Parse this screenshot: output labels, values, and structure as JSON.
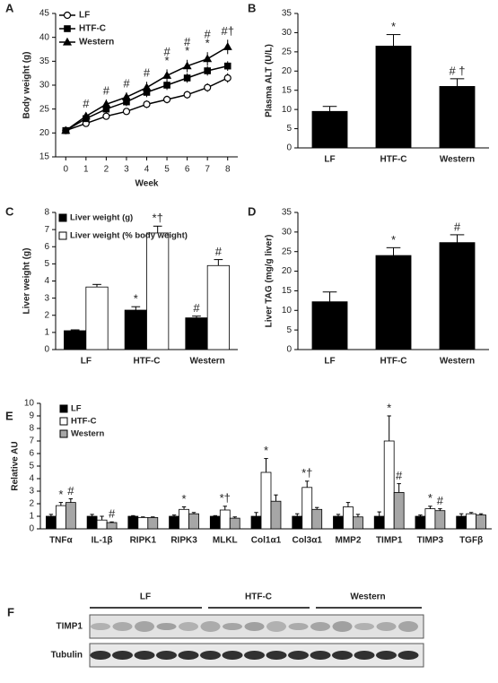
{
  "chart_data": [
    {
      "panel": "A",
      "type": "line",
      "xlabel": "Week",
      "ylabel": "Body weight (g)",
      "x": [
        0,
        1,
        2,
        3,
        4,
        5,
        6,
        7,
        8
      ],
      "xlim": [
        -0.5,
        8.5
      ],
      "xticks": [
        0,
        1,
        2,
        3,
        4,
        5,
        6,
        7,
        8
      ],
      "ylim": [
        15,
        45
      ],
      "yticks": [
        15,
        20,
        25,
        30,
        35,
        40,
        45
      ],
      "legend": "upper left",
      "series": [
        {
          "name": "LF",
          "color": "#000000",
          "marker": "circle-open",
          "values": [
            20.5,
            22,
            23.5,
            24.5,
            26,
            27,
            28,
            29.5,
            31.5
          ],
          "errors": [
            0.5,
            0.6,
            0.6,
            0.7,
            0.8,
            0.8,
            0.8,
            0.9,
            1
          ]
        },
        {
          "name": "HTF-C",
          "color": "#000000",
          "marker": "square",
          "values": [
            20.5,
            23,
            25,
            26.5,
            28.5,
            30,
            31.5,
            33,
            34
          ],
          "errors": [
            0.5,
            0.7,
            0.8,
            0.9,
            1,
            1,
            1,
            1,
            1
          ]
        },
        {
          "name": "Western",
          "color": "#000000",
          "marker": "triangle",
          "values": [
            20.5,
            23.5,
            26,
            27.5,
            29.5,
            32,
            34,
            35.5,
            38
          ],
          "errors": [
            0.5,
            0.8,
            1,
            1,
            1.2,
            1.3,
            1.3,
            1.4,
            1.5
          ]
        }
      ],
      "annotations": [
        {
          "x": 1,
          "text": "#"
        },
        {
          "x": 2,
          "text": "#"
        },
        {
          "x": 3,
          "text": "#"
        },
        {
          "x": 4,
          "text": "#"
        },
        {
          "x": 5,
          "text": "*"
        },
        {
          "x": 5,
          "text": "#"
        },
        {
          "x": 6,
          "text": "*"
        },
        {
          "x": 6,
          "text": "#"
        },
        {
          "x": 7,
          "text": "*"
        },
        {
          "x": 7,
          "text": "#"
        },
        {
          "x": 8,
          "text": "#†"
        }
      ]
    },
    {
      "panel": "B",
      "type": "bar",
      "ylabel": "Plasma ALT (U/L)",
      "categories": [
        "LF",
        "HTF-C",
        "Western"
      ],
      "values": [
        9.5,
        26.5,
        16
      ],
      "errors": [
        1.3,
        3,
        2
      ],
      "annotations": [
        null,
        "*",
        "# †"
      ],
      "color": "#000000",
      "ylim": [
        0,
        35
      ],
      "yticks": [
        0,
        5,
        10,
        15,
        20,
        25,
        30,
        35
      ]
    },
    {
      "panel": "C",
      "type": "bar",
      "ylabel": "Liver weight (g)",
      "categories": [
        "LF",
        "HTF-C",
        "Western"
      ],
      "ylim": [
        0,
        8
      ],
      "yticks": [
        0,
        1,
        2,
        3,
        4,
        5,
        6,
        7,
        8
      ],
      "legend": "upper left",
      "series": [
        {
          "name": "Liver weight (g)",
          "color": "#000000",
          "values": [
            1.1,
            2.3,
            1.85
          ],
          "errors": [
            0.05,
            0.2,
            0.1
          ],
          "annotations": [
            null,
            "*",
            "#"
          ]
        },
        {
          "name": "Liver weight (% body weight)",
          "color": "#ffffff",
          "values": [
            3.65,
            6.8,
            4.9
          ],
          "errors": [
            0.15,
            0.4,
            0.35
          ],
          "annotations": [
            null,
            "*†",
            "#"
          ]
        }
      ]
    },
    {
      "panel": "D",
      "type": "bar",
      "ylabel": "Liver TAG (mg/g liver)",
      "categories": [
        "LF",
        "HTF-C",
        "Western"
      ],
      "values": [
        12.2,
        24,
        27.3
      ],
      "errors": [
        2.5,
        2,
        2
      ],
      "annotations": [
        null,
        "*",
        "#"
      ],
      "color": "#000000",
      "ylim": [
        0,
        35
      ],
      "yticks": [
        0,
        5,
        10,
        15,
        20,
        25,
        30,
        35
      ]
    },
    {
      "panel": "E",
      "type": "bar",
      "ylabel": "Relative AU",
      "categories": [
        "TNFα",
        "IL-1β",
        "RIPK1",
        "RIPK3",
        "MLKL",
        "Col1α1",
        "Col3α1",
        "MMP2",
        "TIMP1",
        "TIMP3",
        "TGFβ"
      ],
      "ylim": [
        0,
        10
      ],
      "yticks": [
        0,
        1,
        2,
        3,
        4,
        5,
        6,
        7,
        8,
        9,
        10
      ],
      "legend": "upper left",
      "series": [
        {
          "name": "LF",
          "color": "#000000",
          "values": [
            1,
            1,
            1,
            1,
            1,
            1,
            1,
            1,
            1,
            1,
            1
          ],
          "errors": [
            0.15,
            0.15,
            0.05,
            0.1,
            0.05,
            0.3,
            0.2,
            0.15,
            0.35,
            0.1,
            0.2
          ]
        },
        {
          "name": "HTF-C",
          "color": "#ffffff",
          "values": [
            1.85,
            0.7,
            0.9,
            1.55,
            1.5,
            4.5,
            3.3,
            1.75,
            7,
            1.6,
            1.2
          ],
          "errors": [
            0.25,
            0.3,
            0.05,
            0.2,
            0.3,
            1.1,
            0.5,
            0.35,
            2,
            0.2,
            0.1
          ],
          "annotations": [
            "*",
            null,
            null,
            "*",
            "*†",
            "*",
            "*†",
            null,
            "*",
            "*",
            null
          ]
        },
        {
          "name": "Western",
          "color": "#a6a6a6",
          "values": [
            2.1,
            0.5,
            0.9,
            1.2,
            0.85,
            2.2,
            1.55,
            0.95,
            2.9,
            1.45,
            1.1
          ],
          "errors": [
            0.3,
            0.05,
            0.05,
            0.1,
            0.1,
            0.5,
            0.15,
            0.2,
            0.7,
            0.15,
            0.1
          ],
          "annotations": [
            "#",
            "#",
            null,
            null,
            null,
            null,
            null,
            null,
            "#",
            "#",
            null
          ]
        }
      ]
    }
  ],
  "blot": {
    "panel": "F",
    "groups": [
      "LF",
      "HTF-C",
      "Western"
    ],
    "rows": [
      "TIMP1",
      "Tubulin"
    ]
  }
}
